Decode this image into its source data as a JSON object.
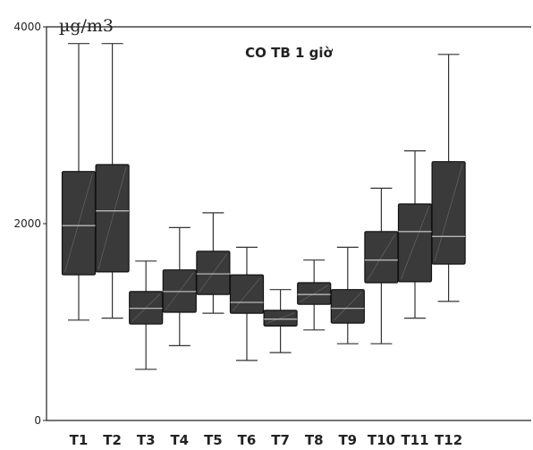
{
  "chart_data": {
    "type": "box",
    "title": "CO TB 1 giờ",
    "ylabel": "µg/m3",
    "xlabel": "",
    "ylim": [
      0,
      4000
    ],
    "yticks": [
      0,
      2000,
      4000
    ],
    "grid": false,
    "colors": {
      "box_fill": "#3a3a3a",
      "box_stroke": "#111111",
      "whisker": "#333333",
      "median": "#b8b8b8"
    },
    "categories": [
      "T1",
      "T2",
      "T3",
      "T4",
      "T5",
      "T6",
      "T7",
      "T8",
      "T9",
      "T10",
      "T11",
      "T12"
    ],
    "boxes": [
      {
        "category": "T1",
        "min": 1020,
        "q1": 1480,
        "median": 1980,
        "q3": 2530,
        "max": 3830
      },
      {
        "category": "T2",
        "min": 1040,
        "q1": 1510,
        "median": 2130,
        "q3": 2600,
        "max": 3830
      },
      {
        "category": "T3",
        "min": 520,
        "q1": 980,
        "median": 1140,
        "q3": 1310,
        "max": 1620
      },
      {
        "category": "T4",
        "min": 760,
        "q1": 1100,
        "median": 1310,
        "q3": 1530,
        "max": 1960
      },
      {
        "category": "T5",
        "min": 1090,
        "q1": 1280,
        "median": 1490,
        "q3": 1720,
        "max": 2110
      },
      {
        "category": "T6",
        "min": 610,
        "q1": 1090,
        "median": 1200,
        "q3": 1480,
        "max": 1760
      },
      {
        "category": "T7",
        "min": 690,
        "q1": 960,
        "median": 1030,
        "q3": 1120,
        "max": 1330
      },
      {
        "category": "T8",
        "min": 920,
        "q1": 1180,
        "median": 1280,
        "q3": 1400,
        "max": 1630
      },
      {
        "category": "T9",
        "min": 780,
        "q1": 990,
        "median": 1140,
        "q3": 1330,
        "max": 1760
      },
      {
        "category": "T10",
        "min": 780,
        "q1": 1400,
        "median": 1630,
        "q3": 1920,
        "max": 2360
      },
      {
        "category": "T11",
        "min": 1040,
        "q1": 1410,
        "median": 1920,
        "q3": 2200,
        "max": 2740
      },
      {
        "category": "T12",
        "min": 1210,
        "q1": 1590,
        "median": 1870,
        "q3": 2630,
        "max": 3720
      }
    ]
  }
}
